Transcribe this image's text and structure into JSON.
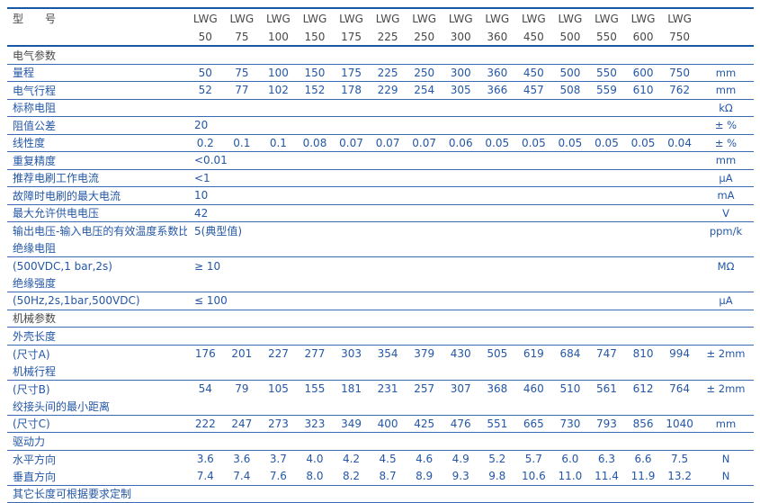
{
  "colors": {
    "accent_blue": "#2457a6",
    "dark_text": "#48484a",
    "rule_thin": "#3a6ab4",
    "rule_thick": "#1658a6"
  },
  "table": {
    "model_label": "型　　号",
    "model_prefix": "LWG",
    "model_sizes": [
      "50",
      "75",
      "100",
      "150",
      "175",
      "225",
      "250",
      "300",
      "360",
      "450",
      "500",
      "550",
      "600",
      "750"
    ],
    "rows": [
      {
        "label": "电气参数",
        "type": "section",
        "line": true
      },
      {
        "label": "量程",
        "type": "data",
        "values": [
          "50",
          "75",
          "100",
          "150",
          "175",
          "225",
          "250",
          "300",
          "360",
          "450",
          "500",
          "550",
          "600",
          "750"
        ],
        "unit": "mm",
        "line": true
      },
      {
        "label": "电气行程",
        "type": "data",
        "values": [
          "52",
          "77",
          "102",
          "152",
          "178",
          "229",
          "254",
          "305",
          "366",
          "457",
          "508",
          "559",
          "610",
          "762"
        ],
        "unit": "mm",
        "line": true
      },
      {
        "label": "标称电阻",
        "type": "data",
        "unit": "kΩ",
        "line": true
      },
      {
        "label": "阻值公差",
        "type": "data",
        "value": "20",
        "unit": "± %",
        "line": true
      },
      {
        "label": "线性度",
        "type": "data",
        "values": [
          "0.2",
          "0.1",
          "0.1",
          "0.08",
          "0.07",
          "0.07",
          "0.07",
          "0.06",
          "0.05",
          "0.05",
          "0.05",
          "0.05",
          "0.05",
          "0.04"
        ],
        "unit": "± %",
        "line": true
      },
      {
        "label": "重复精度",
        "type": "data",
        "value": "<0.01",
        "unit": "mm",
        "line": true
      },
      {
        "label": "推荐电刷工作电流",
        "type": "data",
        "value": "<1",
        "unit": "μA",
        "line": true
      },
      {
        "label": "故障时电刷的最大电流",
        "type": "data",
        "value": "10",
        "unit": "mA",
        "line": true
      },
      {
        "label": "最大允许供电电压",
        "type": "data",
        "value": "42",
        "unit": "V",
        "line": true
      },
      {
        "label": "输出电压-输入电压的有效温度系数比",
        "type": "data",
        "value": "5(典型值)",
        "unit": "ppm/k",
        "line": false
      },
      {
        "label": "绝缘电阻",
        "type": "data",
        "line": true
      },
      {
        "label": "(500VDC,1 bar,2s)",
        "type": "data",
        "value": "≥ 10",
        "unit": "MΩ",
        "line": false
      },
      {
        "label": "绝缘强度",
        "type": "data",
        "line": true
      },
      {
        "label": "(50Hz,2s,1bar,500VDC)",
        "type": "data",
        "value": "≤ 100",
        "unit": "μA",
        "line": true
      },
      {
        "label": "机械参数",
        "type": "section",
        "line": true
      },
      {
        "label": "外壳长度",
        "type": "data",
        "line": true
      },
      {
        "label": "(尺寸A)",
        "type": "data",
        "values": [
          "176",
          "201",
          "227",
          "277",
          "303",
          "354",
          "379",
          "430",
          "505",
          "619",
          "684",
          "747",
          "810",
          "994"
        ],
        "unit": "± 2mm",
        "line": false
      },
      {
        "label": "机械行程",
        "type": "data",
        "line": true
      },
      {
        "label": "(尺寸B)",
        "type": "data",
        "values": [
          "54",
          "79",
          "105",
          "155",
          "181",
          "231",
          "257",
          "307",
          "368",
          "460",
          "510",
          "561",
          "612",
          "764"
        ],
        "unit": "± 2mm",
        "line": false
      },
      {
        "label": "绞接头间的最小距离",
        "type": "data",
        "line": true
      },
      {
        "label": "(尺寸C)",
        "type": "data",
        "values": [
          "222",
          "247",
          "273",
          "323",
          "349",
          "400",
          "425",
          "476",
          "551",
          "665",
          "730",
          "793",
          "856",
          "1040"
        ],
        "unit": "mm",
        "line": true
      },
      {
        "label": "驱动力",
        "type": "data",
        "line": true
      },
      {
        "label": "水平方向",
        "type": "data",
        "values": [
          "3.6",
          "3.6",
          "3.7",
          "4.0",
          "4.2",
          "4.5",
          "4.6",
          "4.9",
          "5.2",
          "5.7",
          "6.0",
          "6.3",
          "6.6",
          "7.5"
        ],
        "unit": "N",
        "line": false
      },
      {
        "label": "垂直方向",
        "type": "data",
        "values": [
          "7.4",
          "7.4",
          "7.6",
          "8.0",
          "8.2",
          "8.7",
          "8.9",
          "9.3",
          "9.8",
          "10.6",
          "11.0",
          "11.4",
          "11.9",
          "13.2"
        ],
        "unit": "N",
        "line": true
      },
      {
        "label": "其它长度可根据要求定制",
        "type": "data",
        "line": true
      }
    ]
  }
}
